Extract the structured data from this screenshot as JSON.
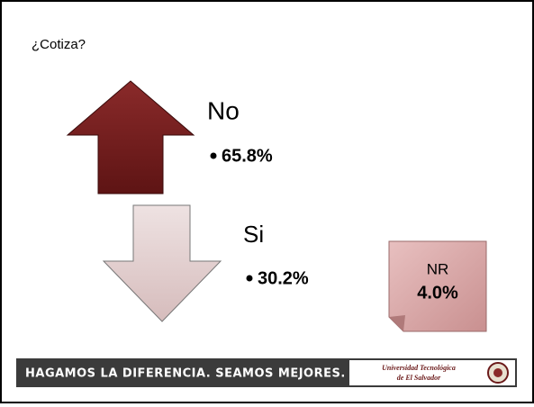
{
  "title": "¿Cotiza?",
  "items": [
    {
      "label": "No",
      "value": "65.8%"
    },
    {
      "label": "Si",
      "value": "30.2%"
    },
    {
      "label": "NR",
      "value": "4.0%"
    }
  ],
  "footer": {
    "slogan": "HAGAMOS LA DIFERENCIA. SEAMOS MEJORES.",
    "logo_line1": "Universidad Tecnológica",
    "logo_line2": "de El Salvador"
  }
}
